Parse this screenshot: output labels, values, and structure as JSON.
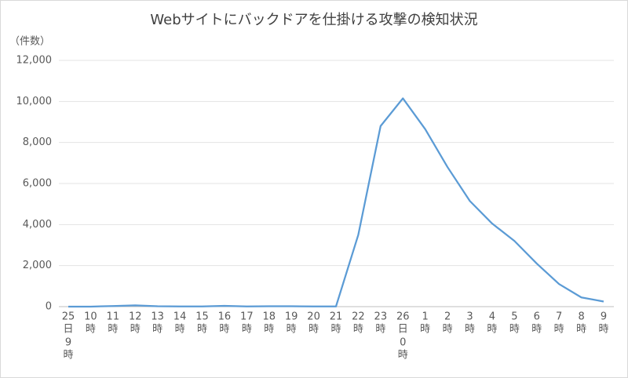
{
  "chart_data": {
    "type": "line",
    "title": "Webサイトにバックドアを仕掛ける攻撃の検知状況",
    "y_label": "（件数）",
    "categories": [
      [
        "25",
        "日",
        "9",
        "時"
      ],
      [
        "10",
        "時"
      ],
      [
        "11",
        "時"
      ],
      [
        "12",
        "時"
      ],
      [
        "13",
        "時"
      ],
      [
        "14",
        "時"
      ],
      [
        "15",
        "時"
      ],
      [
        "16",
        "時"
      ],
      [
        "17",
        "時"
      ],
      [
        "18",
        "時"
      ],
      [
        "19",
        "時"
      ],
      [
        "20",
        "時"
      ],
      [
        "21",
        "時"
      ],
      [
        "22",
        "時"
      ],
      [
        "23",
        "時"
      ],
      [
        "26",
        "日",
        "0",
        "時"
      ],
      [
        "1",
        "時"
      ],
      [
        "2",
        "時"
      ],
      [
        "3",
        "時"
      ],
      [
        "4",
        "時"
      ],
      [
        "5",
        "時"
      ],
      [
        "6",
        "時"
      ],
      [
        "7",
        "時"
      ],
      [
        "8",
        "時"
      ],
      [
        "9",
        "時"
      ]
    ],
    "values": [
      0,
      0,
      30,
      60,
      20,
      10,
      10,
      40,
      10,
      20,
      20,
      10,
      10,
      3500,
      8800,
      10150,
      8650,
      6800,
      5150,
      4050,
      3200,
      2100,
      1100,
      450,
      250
    ],
    "color": "#5b9bd5",
    "ylim": [
      0,
      12000
    ],
    "yticks": [
      0,
      {
        "value": 2000,
        "label": "2,000"
      },
      {
        "value": 4000,
        "label": "4,000"
      },
      {
        "value": 6000,
        "label": "6,000"
      },
      {
        "value": 8000,
        "label": "8,000"
      },
      {
        "value": 10000,
        "label": "10,000"
      },
      {
        "value": 12000,
        "label": "12,000"
      }
    ],
    "grid": true
  }
}
